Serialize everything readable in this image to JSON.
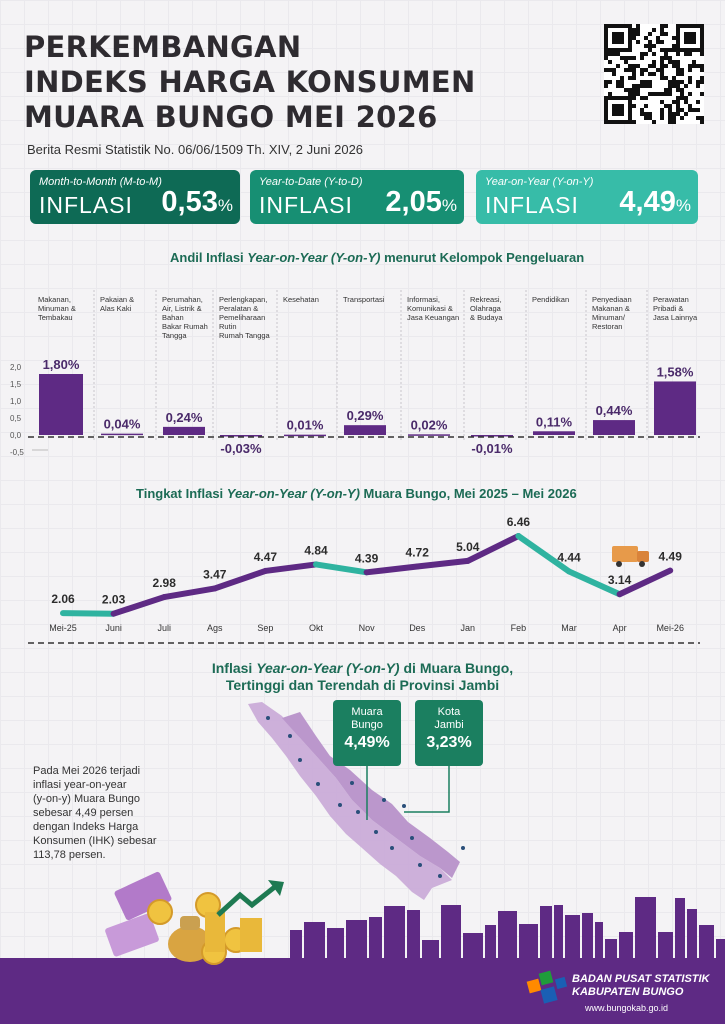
{
  "header": {
    "title_lines": [
      "PERKEMBANGAN",
      "INDEKS HARGA KONSUMEN",
      "MUARA BUNGO MEI 2026"
    ],
    "subtitle": "Berita Resmi Statistik No. 06/06/1509 Th. XIV, 2 Juni 2026"
  },
  "summary": [
    {
      "label": "Month-to-Month (M-to-M)",
      "word": "INFLASI",
      "value": "0,53",
      "unit": "%",
      "color": "#0e6a55"
    },
    {
      "label": "Year-to-Date (Y-to-D)",
      "word": "INFLASI",
      "value": "2,05",
      "unit": "%",
      "color": "#178f73"
    },
    {
      "label": "Year-on-Year (Y-on-Y)",
      "word": "INFLASI",
      "value": "4,49",
      "unit": "%",
      "color": "#37bca8"
    }
  ],
  "bar_title": {
    "pre": "Andil Inflasi ",
    "italic": "Year-on-Year (Y-on-Y)",
    "post": " menurut Kelompok Pengeluaran"
  },
  "line_title": {
    "pre": "Tingkat Inflasi ",
    "italic": "Year-on-Year (Y-on-Y)",
    "post": " Muara Bungo, Mei 2025 – Mei 2026"
  },
  "map_title": {
    "pre": "Inflasi ",
    "italic": "Year-on-Year (Y-on-Y)",
    "post": " di Muara Bungo,",
    "line2": "Tertinggi dan Terendah di Provinsi Jambi"
  },
  "chart_data": [
    {
      "type": "bar",
      "categories": [
        [
          "Makanan,",
          "Minuman &",
          "Tembakau"
        ],
        [
          "Pakaian &",
          "Alas Kaki"
        ],
        [
          "Perumahan,",
          "Air, Listrik &",
          "Bahan",
          "Bakar Rumah",
          "Tangga"
        ],
        [
          "Perlengkapan,",
          "Peralatan &",
          "Pemeliharaan",
          "Rutin",
          "Rumah Tangga"
        ],
        [
          "Kesehatan"
        ],
        [
          "Transportasi"
        ],
        [
          "Informasi,",
          "Komunikasi &",
          "Jasa Keuangan"
        ],
        [
          "Rekreasi,",
          "Olahraga",
          "& Budaya"
        ],
        [
          "Pendidikan"
        ],
        [
          "Penyediaan",
          "Makanan &",
          "Minuman/",
          "Restoran"
        ],
        [
          "Perawatan",
          "Pribadi &",
          "Jasa Lainnya"
        ]
      ],
      "values": [
        1.8,
        0.04,
        0.24,
        -0.03,
        0.01,
        0.29,
        0.02,
        -0.01,
        0.11,
        0.44,
        1.58
      ],
      "value_labels": [
        "1,80%",
        "0,04%",
        "0,24%",
        "-0,03%",
        "0,01%",
        "0,29%",
        "0,02%",
        "-0,01%",
        "0,11%",
        "0,44%",
        "1,58%"
      ],
      "yticks": [
        "2,0",
        "1,5",
        "1,0",
        "0,5",
        "0,0",
        "-0,5"
      ],
      "ytick_values": [
        2.0,
        1.5,
        1.0,
        0.5,
        0.0,
        -0.5
      ],
      "ylim": [
        -0.5,
        2.0
      ],
      "color": "#5e2a84"
    },
    {
      "type": "line",
      "x": [
        "Mei-25",
        "Juni",
        "Juli",
        "Ags",
        "Sep",
        "Okt",
        "Nov",
        "Des",
        "Jan",
        "Feb",
        "Mar",
        "Apr",
        "Mei-26"
      ],
      "values": [
        2.06,
        2.03,
        2.98,
        3.47,
        4.47,
        4.84,
        4.39,
        4.72,
        5.04,
        6.46,
        4.44,
        3.14,
        4.49
      ],
      "value_labels": [
        "2.06",
        "2.03",
        "2.98",
        "3.47",
        "4.47",
        "4.84",
        "4.39",
        "4.72",
        "5.04",
        "6.46",
        "4.44",
        "3.14",
        "4.49"
      ],
      "ylim": [
        1.5,
        7
      ],
      "colors": {
        "rise": "#5e2a84",
        "fall": "#2fb3a0"
      }
    }
  ],
  "cities": [
    {
      "name_lines": [
        "Muara",
        "Bungo"
      ],
      "value": "4,49%"
    },
    {
      "name_lines": [
        "Kota",
        "Jambi"
      ],
      "value": "3,23%"
    }
  ],
  "note_lines": [
    "Pada Mei 2026 terjadi",
    "inflasi year-on-year",
    "(y-on-y) Muara Bungo",
    "sebesar 4,49 persen",
    "dengan Indeks Harga",
    "Konsumen (IHK) sebesar",
    "113,78 persen."
  ],
  "footer": {
    "org_lines": [
      "BADAN PUSAT STATISTIK",
      "KABUPATEN BUNGO"
    ],
    "url": "www.bungokab.go.id"
  },
  "icons": [
    "qr-code-icon",
    "truck-icon",
    "money-bag-icon",
    "coin-icon",
    "trend-arrow-icon",
    "bps-logo-icon",
    "skyline-icon",
    "map-sumatra-icon"
  ]
}
